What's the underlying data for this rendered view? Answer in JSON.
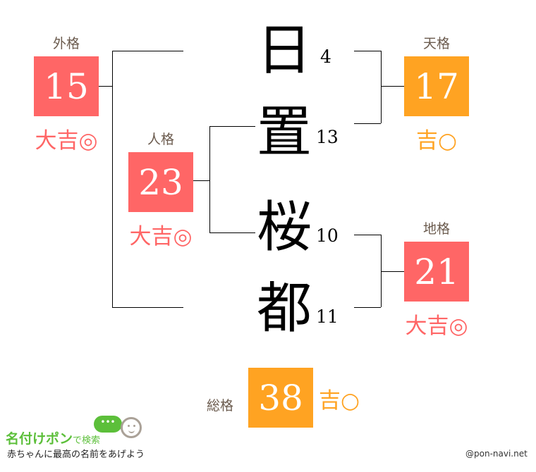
{
  "colors": {
    "great": "#ff6666",
    "good": "#ffa322",
    "label": "#6b5b4e"
  },
  "name": {
    "chars": [
      {
        "char": "日",
        "strokes": "4"
      },
      {
        "char": "置",
        "strokes": "13"
      },
      {
        "char": "桜",
        "strokes": "10"
      },
      {
        "char": "都",
        "strokes": "11"
      }
    ]
  },
  "kaku": {
    "gaikaku": {
      "label": "外格",
      "value": "15",
      "fortune": "大吉◎"
    },
    "jinkaku": {
      "label": "人格",
      "value": "23",
      "fortune": "大吉◎"
    },
    "tenkaku": {
      "label": "天格",
      "value": "17",
      "fortune": "吉○"
    },
    "chikaku": {
      "label": "地格",
      "value": "21",
      "fortune": "大吉◎"
    },
    "soukaku": {
      "label": "総格",
      "value": "38",
      "fortune": "吉○"
    }
  },
  "logo": {
    "title": "名付けポン",
    "suffix": "で検索",
    "tagline": "赤ちゃんに最高の名前をあげよう"
  },
  "credit": "@pon-navi.net"
}
